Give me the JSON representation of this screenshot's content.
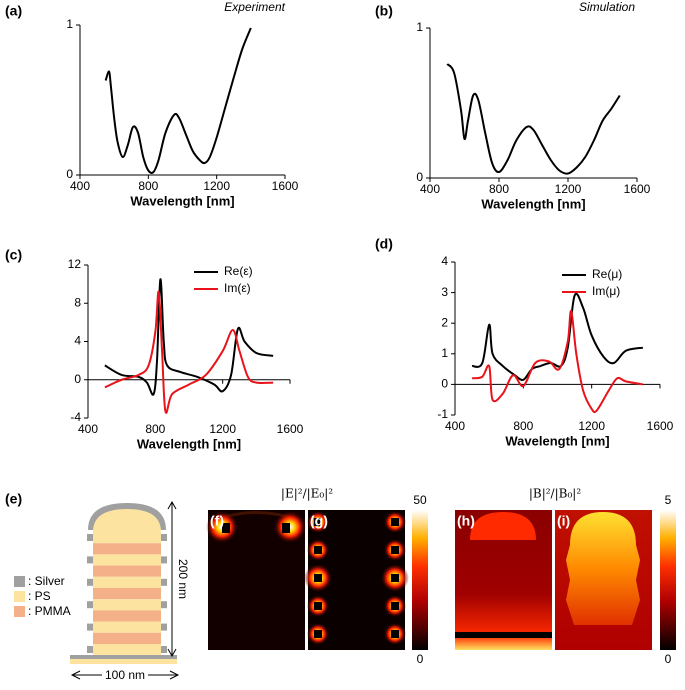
{
  "chart_data": [
    {
      "type": "line",
      "panel": "(a)",
      "annotation": "Experiment",
      "xlabel": "Wavelength [nm]",
      "xlim": [
        400,
        1600
      ],
      "xticks": [
        400,
        800,
        1200,
        1600
      ],
      "ylim": [
        0,
        1
      ],
      "yticks": [
        0,
        1
      ],
      "series": [
        {
          "color": "#000000",
          "x": [
            550,
            570,
            580,
            600,
            620,
            650,
            680,
            710,
            740,
            770,
            800,
            830,
            860,
            900,
            950,
            980,
            1020,
            1060,
            1100,
            1130,
            1160,
            1200,
            1250,
            1300,
            1350,
            1400
          ],
          "values": [
            0.63,
            0.69,
            0.6,
            0.38,
            0.22,
            0.12,
            0.2,
            0.32,
            0.28,
            0.12,
            0.03,
            0.02,
            0.1,
            0.28,
            0.4,
            0.38,
            0.27,
            0.16,
            0.1,
            0.08,
            0.12,
            0.25,
            0.45,
            0.65,
            0.84,
            0.98
          ]
        }
      ]
    },
    {
      "type": "line",
      "panel": "(b)",
      "annotation": "Simulation",
      "xlabel": "Wavelength [nm]",
      "xlim": [
        400,
        1600
      ],
      "xticks": [
        400,
        800,
        1200,
        1600
      ],
      "ylim": [
        0,
        1
      ],
      "yticks": [
        0,
        1
      ],
      "series": [
        {
          "color": "#000000",
          "x": [
            500,
            540,
            580,
            600,
            620,
            650,
            680,
            720,
            760,
            800,
            850,
            900,
            960,
            1000,
            1050,
            1100,
            1150,
            1200,
            1250,
            1300,
            1350,
            1400,
            1450,
            1500
          ],
          "values": [
            0.76,
            0.7,
            0.45,
            0.26,
            0.38,
            0.55,
            0.52,
            0.3,
            0.1,
            0.04,
            0.12,
            0.25,
            0.34,
            0.32,
            0.22,
            0.12,
            0.05,
            0.03,
            0.07,
            0.14,
            0.25,
            0.38,
            0.46,
            0.55
          ]
        }
      ]
    },
    {
      "type": "line",
      "panel": "(c)",
      "xlabel": "Wavelength [nm]",
      "legend": "upper right",
      "xlim": [
        400,
        1600
      ],
      "xticks": [
        400,
        800,
        1200,
        1600
      ],
      "ylim": [
        -4,
        12
      ],
      "yticks": [
        -4,
        0,
        4,
        8,
        12
      ],
      "series": [
        {
          "name": "Re(ε)",
          "color": "#000000",
          "x": [
            500,
            600,
            700,
            750,
            790,
            810,
            830,
            850,
            870,
            950,
            1050,
            1150,
            1200,
            1250,
            1290,
            1330,
            1400,
            1500
          ],
          "values": [
            1.5,
            0.5,
            0.3,
            -0.3,
            -1.5,
            2,
            10.5,
            4,
            1.5,
            0.8,
            0.3,
            -0.5,
            -1.2,
            0.5,
            5.3,
            4,
            2.8,
            2.5
          ]
        },
        {
          "name": "Im(ε)",
          "color": "#e8141a",
          "x": [
            500,
            600,
            700,
            760,
            800,
            820,
            840,
            860,
            900,
            1000,
            1100,
            1200,
            1260,
            1300,
            1350,
            1400,
            1500
          ],
          "values": [
            -0.8,
            0,
            0.5,
            1.5,
            5,
            9.2,
            3,
            -3.3,
            -1.5,
            -0.5,
            0.5,
            3,
            5.2,
            3,
            0.3,
            -0.3,
            -0.3
          ]
        }
      ]
    },
    {
      "type": "line",
      "panel": "(d)",
      "xlabel": "Wavelength [nm]",
      "legend": "upper right",
      "xlim": [
        400,
        1600
      ],
      "xticks": [
        400,
        800,
        1200,
        1600
      ],
      "ylim": [
        -1,
        4
      ],
      "yticks": [
        -1,
        0,
        1,
        2,
        3,
        4
      ],
      "series": [
        {
          "name": "Re(μ)",
          "color": "#000000",
          "x": [
            500,
            560,
            600,
            620,
            680,
            750,
            800,
            850,
            900,
            960,
            1020,
            1060,
            1100,
            1150,
            1200,
            1270,
            1330,
            1400,
            1500
          ],
          "values": [
            0.6,
            0.7,
            1.95,
            1,
            0.6,
            0.3,
            0.15,
            0.5,
            0.6,
            0.7,
            0.6,
            1.2,
            2.9,
            2.5,
            1.6,
            0.9,
            0.7,
            1.1,
            1.2
          ]
        },
        {
          "name": "Im(μ)",
          "color": "#e8141a",
          "x": [
            500,
            560,
            600,
            620,
            680,
            740,
            800,
            870,
            950,
            1010,
            1060,
            1080,
            1110,
            1150,
            1200,
            1230,
            1300,
            1350,
            1400,
            1500
          ],
          "values": [
            0.2,
            0.25,
            0.6,
            -0.5,
            -0.3,
            0.3,
            -0.05,
            0.7,
            0.75,
            0.5,
            1.4,
            2.4,
            1,
            -0.2,
            -0.8,
            -0.85,
            -0.2,
            0.2,
            0.1,
            0
          ]
        }
      ]
    }
  ],
  "diagram": {
    "panel": "(e)",
    "legend": [
      ": Silver",
      ": PS",
      ": PMMA"
    ],
    "height_label": "200 nm",
    "width_label": "100 nm"
  },
  "field_maps": [
    {
      "title": "|E|²/|E₀|²",
      "panels": [
        "(f)",
        "(g)"
      ],
      "colorbar_ticks": [
        0,
        50
      ]
    },
    {
      "title": "|B|²/|B₀|²",
      "panels": [
        "(h)",
        "(i)"
      ],
      "colorbar_ticks": [
        0,
        5
      ]
    }
  ]
}
